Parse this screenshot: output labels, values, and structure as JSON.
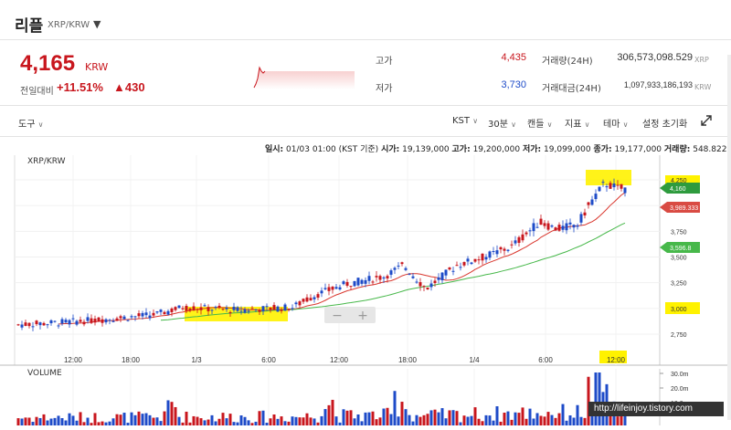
{
  "header": {
    "coin_name": "리플",
    "pair": "XRP/KRW",
    "caret": "▼"
  },
  "price": {
    "current": "4,165",
    "unit": "KRW",
    "prev_label": "전일대비",
    "change_pct": "+11.51%",
    "change_abs": "▲430"
  },
  "stats": {
    "high_label": "고가",
    "high_value": "4,435",
    "low_label": "저가",
    "low_value": "3,730",
    "volume_label": "거래량(24H)",
    "volume_value": "306,573,098.529",
    "volume_unit": "XRP",
    "amount_label": "거래대금(24H)",
    "amount_value": "1,097,933,186,193",
    "amount_unit": "KRW"
  },
  "toolbar": {
    "tools": "도구",
    "timezone": "KST",
    "interval": "30분",
    "candle": "캔들",
    "indicator": "지표",
    "theme": "테마",
    "reset": "설정 초기화",
    "caret": "∨"
  },
  "ohlc_bar": {
    "time_label": "일시:",
    "time_value": "01/03 01:00 (KST 기준)",
    "open_label": "시가:",
    "open_value": "19,139,000",
    "high_label": "고가:",
    "high_value": "19,200,000",
    "low_label": "저가:",
    "low_value": "19,099,000",
    "close_label": "종가:",
    "close_value": "19,177,000",
    "vol_label": "거래량:",
    "vol_value": "548.822"
  },
  "chart": {
    "pair_label": "XRP/KRW",
    "y_ticks": [
      "4,250",
      "3,750",
      "3,500",
      "3,250",
      "3,000",
      "2,750"
    ],
    "x_ticks": [
      "12:00",
      "18:00",
      "1/3",
      "6:00",
      "12:00",
      "18:00",
      "1/4",
      "6:00",
      "12:00"
    ],
    "price_tag": "4,160",
    "ma_short_tag": "3,989.333",
    "ma_long_tag": "3,596.8",
    "zoom_minus": "−",
    "zoom_plus": "+",
    "colors": {
      "up": "#c8161d",
      "down": "#1e4bc8",
      "ma_short": "#d9372e",
      "ma_long": "#47b84a",
      "highlight": "#fff200"
    }
  },
  "volume": {
    "title": "VOLUME",
    "ticks": [
      "30.0m",
      "20.0m",
      "10.0m"
    ]
  },
  "watermark": "http://lifeinjoy.tistory.com"
}
